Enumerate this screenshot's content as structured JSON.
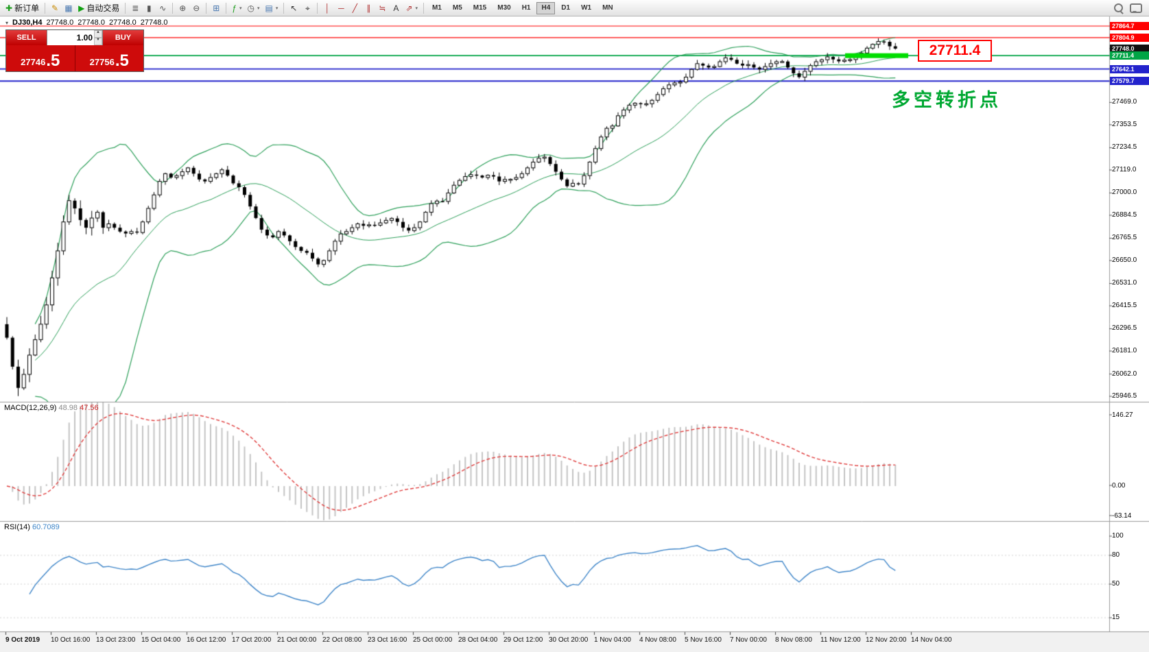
{
  "toolbar": {
    "buttons": [
      {
        "name": "new-order-button",
        "label": "新订单",
        "glyph": "✚",
        "glyph_color": "#1e9c1e"
      },
      {
        "sep": true
      },
      {
        "name": "metaeditor-icon-button",
        "glyph": "✎",
        "glyph_color": "#c88a00"
      },
      {
        "name": "market-watch-icon-button",
        "glyph": "▦",
        "glyph_color": "#4a78b0"
      },
      {
        "name": "autotrading-button",
        "label": "自动交易",
        "glyph": "▶",
        "glyph_color": "#12a112"
      },
      {
        "sep": true
      },
      {
        "name": "bar-chart-button",
        "glyph": "≣",
        "glyph_color": "#555555"
      },
      {
        "name": "candlestick-chart-button",
        "glyph": "▮",
        "glyph_color": "#555555"
      },
      {
        "name": "line-chart-button",
        "glyph": "∿",
        "glyph_color": "#555555"
      },
      {
        "sep": true
      },
      {
        "name": "zoom-in-button",
        "glyph": "⊕",
        "glyph_color": "#555555"
      },
      {
        "name": "zoom-out-button",
        "glyph": "⊖",
        "glyph_color": "#555555"
      },
      {
        "sep": true
      },
      {
        "name": "tile-windows-button",
        "glyph": "⊞",
        "glyph_color": "#4a78b0"
      },
      {
        "sep": true
      },
      {
        "name": "indicators-button",
        "glyph": "ƒ",
        "glyph_color": "#1e9c1e",
        "caret": true
      },
      {
        "name": "periods-button",
        "glyph": "◷",
        "glyph_color": "#555555",
        "caret": true
      },
      {
        "name": "templates-button",
        "glyph": "▤",
        "glyph_color": "#4a78b0",
        "caret": true
      },
      {
        "sep": true
      },
      {
        "name": "cursor-button",
        "glyph": "↖",
        "glyph_color": "#333333"
      },
      {
        "name": "crosshair-button",
        "glyph": "⌖",
        "glyph_color": "#333333"
      },
      {
        "sep": true
      },
      {
        "name": "vertical-line-button",
        "glyph": "│",
        "glyph_color": "#b03030"
      },
      {
        "name": "horizontal-line-button",
        "glyph": "─",
        "glyph_color": "#b03030"
      },
      {
        "name": "trendline-button",
        "glyph": "╱",
        "glyph_color": "#b03030"
      },
      {
        "name": "equidistant-channel-button",
        "glyph": "∥",
        "glyph_color": "#b03030"
      },
      {
        "name": "fibonacci-button",
        "glyph": "≒",
        "glyph_color": "#b03030"
      },
      {
        "name": "text-label-button",
        "glyph": "A",
        "glyph_color": "#333333"
      },
      {
        "name": "arrows-button",
        "glyph": "⇗",
        "glyph_color": "#b03030",
        "caret": true
      },
      {
        "sep": true
      }
    ],
    "timeframes": [
      "M1",
      "M5",
      "M15",
      "M30",
      "H1",
      "H4",
      "D1",
      "W1",
      "MN"
    ],
    "active_timeframe": "H4",
    "right_icons": [
      {
        "name": "search-icon"
      },
      {
        "name": "chat-icon"
      }
    ]
  },
  "chart": {
    "symbol_period": "DJ30,H4",
    "open": "27748.0",
    "high": "27748.0",
    "low": "27748.0",
    "close": "27748.0"
  },
  "trade_panel": {
    "sell_label": "SELL",
    "buy_label": "BUY",
    "volume": "1.00",
    "sell_price_main": "27746",
    "sell_price_pips": ".5",
    "buy_price_main": "27756",
    "buy_price_pips": ".5"
  },
  "annotation": {
    "text": "多空转折点",
    "color": "#00a832"
  },
  "chart_data": {
    "type": "candlestick",
    "symbol": "DJ30",
    "period": "H4",
    "first_open": 26320,
    "closes": [
      26250,
      26100,
      25990,
      26060,
      26160,
      26240,
      26320,
      26420,
      26560,
      26700,
      26850,
      26960,
      26920,
      26860,
      26820,
      26870,
      26900,
      26820,
      26840,
      26820,
      26800,
      26790,
      26800,
      26795,
      26850,
      26920,
      26990,
      27060,
      27100,
      27080,
      27090,
      27110,
      27130,
      27100,
      27070,
      27060,
      27080,
      27100,
      27120,
      27090,
      27050,
      27030,
      26990,
      26930,
      26870,
      26810,
      26780,
      26770,
      26800,
      26780,
      26750,
      26720,
      26700,
      26690,
      26660,
      26630,
      26650,
      26700,
      26750,
      26788,
      26800,
      26820,
      26840,
      26830,
      26835,
      26833,
      26845,
      26858,
      26868,
      26850,
      26820,
      26805,
      26820,
      26850,
      26900,
      26945,
      26958,
      26956,
      27000,
      27040,
      27065,
      27085,
      27095,
      27090,
      27080,
      27092,
      27085,
      27060,
      27070,
      27071,
      27080,
      27100,
      27130,
      27160,
      27180,
      27186,
      27150,
      27110,
      27070,
      27035,
      27050,
      27046,
      27090,
      27160,
      27230,
      27290,
      27335,
      27347,
      27400,
      27430,
      27455,
      27465,
      27460,
      27462,
      27480,
      27510,
      27540,
      27560,
      27570,
      27575,
      27600,
      27640,
      27670,
      27660,
      27650,
      27655,
      27680,
      27700,
      27690,
      27670,
      27660,
      27665,
      27650,
      27640,
      27655,
      27670,
      27680,
      27681,
      27650,
      27620,
      27600,
      27630,
      27660,
      27680,
      27690,
      27705,
      27692,
      27682,
      27688,
      27691,
      27705,
      27725,
      27750,
      27770,
      27785,
      27783,
      27760,
      27748
    ],
    "y_ticks": [
      27469.0,
      27353.5,
      27234.5,
      27119.0,
      27000.0,
      26884.5,
      26765.5,
      26650.0,
      26531.0,
      26415.5,
      26296.5,
      26181.0,
      26062.0,
      25946.5
    ],
    "levels": [
      {
        "price": 27864.7,
        "color": "#ff0000",
        "width": 1.2,
        "style": "line"
      },
      {
        "price": 27804.9,
        "color": "#ff0000",
        "width": 1.2,
        "style": "line"
      },
      {
        "price": 27748.0,
        "color": "#111111",
        "width": 0,
        "style": "tag"
      },
      {
        "price": 27711.4,
        "color": "#00a546",
        "width": 1.6,
        "style": "line"
      },
      {
        "price": 27642.1,
        "color": "#2323cc",
        "width": 1.8,
        "style": "line"
      },
      {
        "price": 27579.7,
        "color": "#2323cc",
        "width": 1.8,
        "style": "line"
      }
    ],
    "highlight": {
      "price": 27711.4,
      "label": "27711.4",
      "color": "#00dd00"
    },
    "x_labels": [
      "9 Oct 2019",
      "10 Oct 16:00",
      "13 Oct 23:00",
      "15 Oct 04:00",
      "16 Oct 12:00",
      "17 Oct 20:00",
      "21 Oct 00:00",
      "22 Oct 08:00",
      "23 Oct 16:00",
      "25 Oct 00:00",
      "28 Oct 04:00",
      "29 Oct 12:00",
      "30 Oct 20:00",
      "1 Nov 04:00",
      "4 Nov 08:00",
      "5 Nov 16:00",
      "7 Nov 00:00",
      "8 Nov 08:00",
      "11 Nov 12:00",
      "12 Nov 20:00",
      "14 Nov 04:00"
    ],
    "indicators": {
      "bollinger": {
        "period": 20,
        "deviation": 2,
        "color": "#2da05a"
      },
      "macd": {
        "label": "MACD(12,26,9)",
        "fast": 12,
        "slow": 26,
        "signal": 9,
        "value": "48.98",
        "signal_value": "47.56",
        "scale": [
          "146.27",
          "0.00",
          "-63.14"
        ],
        "histogram_color": "#c4c4c4",
        "signal_color": "#e03b3b"
      },
      "rsi": {
        "label": "RSI(14)",
        "value": "60.7089",
        "scale": [
          "100",
          "80",
          "50",
          "15"
        ],
        "color": "#3f86c9"
      }
    }
  }
}
